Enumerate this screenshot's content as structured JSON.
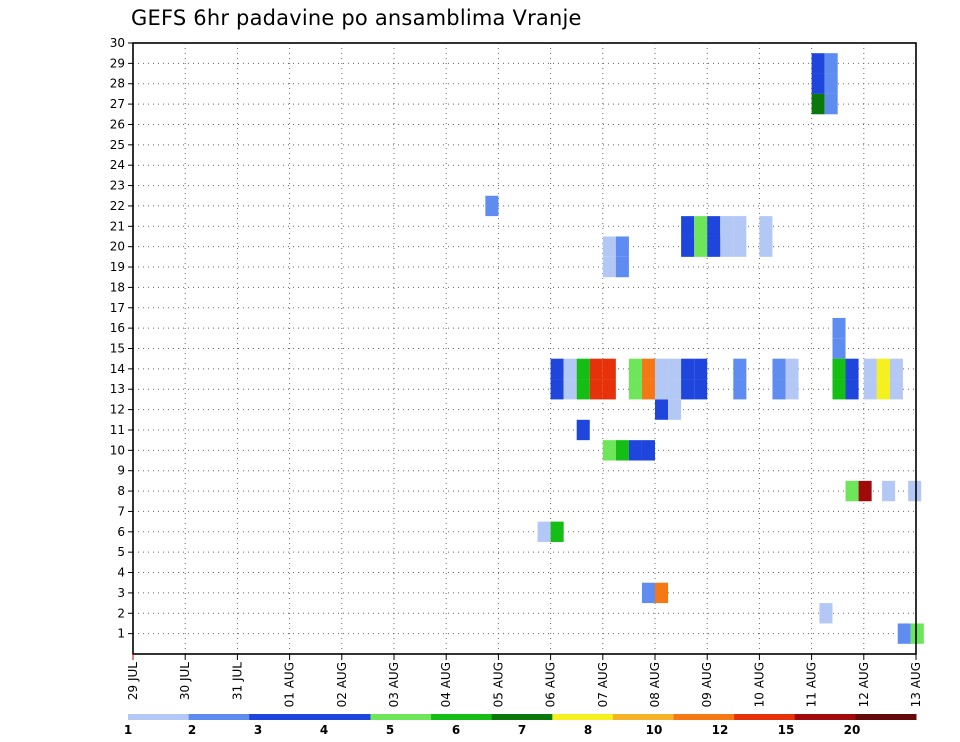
{
  "chart_data": {
    "type": "heatmap",
    "title": "GEFS 6hr padavine po ansamblima Vranje",
    "ylim": [
      0,
      30
    ],
    "x_tick_labels": [
      "29 JUL",
      "30 JUL",
      "31 JUL",
      "01 AUG",
      "02 AUG",
      "03 AUG",
      "04 AUG",
      "05 AUG",
      "06 AUG",
      "07 AUG",
      "08 AUG",
      "09 AUG",
      "10 AUG",
      "11 AUG",
      "12 AUG",
      "13 AUG"
    ],
    "y_ticks": [
      1,
      2,
      3,
      4,
      5,
      6,
      7,
      8,
      9,
      10,
      11,
      12,
      13,
      14,
      15,
      16,
      17,
      18,
      19,
      20,
      21,
      22,
      23,
      24,
      25,
      26,
      27,
      28,
      29,
      30
    ],
    "grid": true,
    "legend_position": "bottom",
    "legend": {
      "labels": [
        "1",
        "2",
        "3",
        "4",
        "5",
        "6",
        "7",
        "8",
        "10",
        "12",
        "15",
        "20"
      ],
      "colors": [
        "#b4c8f6",
        "#5f8cf0",
        "#1e46dc",
        "#1e46dc",
        "#6ee65a",
        "#14be14",
        "#0a780a",
        "#f5f01e",
        "#f5b428",
        "#f57814",
        "#e6320a",
        "#a00a0a",
        "#640a0a"
      ]
    },
    "points": [
      {
        "day": 13.0,
        "member": 29,
        "color": "#1e46dc"
      },
      {
        "day": 13.25,
        "member": 29,
        "color": "#5f8cf0"
      },
      {
        "day": 13.0,
        "member": 28,
        "color": "#1e46dc"
      },
      {
        "day": 13.25,
        "member": 28,
        "color": "#5f8cf0"
      },
      {
        "day": 13.0,
        "member": 27,
        "color": "#0a780a"
      },
      {
        "day": 13.25,
        "member": 27,
        "color": "#5f8cf0"
      },
      {
        "day": 6.75,
        "member": 22,
        "color": "#5f8cf0"
      },
      {
        "day": 10.5,
        "member": 21,
        "color": "#1e46dc"
      },
      {
        "day": 10.75,
        "member": 21,
        "color": "#6ee65a"
      },
      {
        "day": 11.0,
        "member": 21,
        "color": "#1e46dc"
      },
      {
        "day": 11.25,
        "member": 21,
        "color": "#b4c8f6"
      },
      {
        "day": 11.5,
        "member": 21,
        "color": "#b4c8f6"
      },
      {
        "day": 12.0,
        "member": 21,
        "color": "#b4c8f6"
      },
      {
        "day": 12.0,
        "member": 20,
        "color": "#b4c8f6"
      },
      {
        "day": 11.25,
        "member": 20,
        "color": "#b4c8f6"
      },
      {
        "day": 11.5,
        "member": 20,
        "color": "#b4c8f6"
      },
      {
        "day": 10.75,
        "member": 20,
        "color": "#6ee65a"
      },
      {
        "day": 10.5,
        "member": 20,
        "color": "#1e46dc"
      },
      {
        "day": 11.0,
        "member": 20,
        "color": "#1e46dc"
      },
      {
        "day": 9.0,
        "member": 20,
        "color": "#b4c8f6"
      },
      {
        "day": 9.25,
        "member": 20,
        "color": "#5f8cf0"
      },
      {
        "day": 9.0,
        "member": 19,
        "color": "#b4c8f6"
      },
      {
        "day": 9.25,
        "member": 19,
        "color": "#5f8cf0"
      },
      {
        "day": 13.4,
        "member": 16,
        "color": "#5f8cf0"
      },
      {
        "day": 13.4,
        "member": 15,
        "color": "#5f8cf0"
      },
      {
        "day": 8.0,
        "member": 14,
        "color": "#1e46dc"
      },
      {
        "day": 8.25,
        "member": 14,
        "color": "#b4c8f6"
      },
      {
        "day": 8.5,
        "member": 14,
        "color": "#14be14"
      },
      {
        "day": 8.75,
        "member": 14,
        "color": "#e6320a"
      },
      {
        "day": 9.0,
        "member": 14,
        "color": "#e6320a"
      },
      {
        "day": 9.5,
        "member": 14,
        "color": "#6ee65a"
      },
      {
        "day": 9.75,
        "member": 14,
        "color": "#f57814"
      },
      {
        "day": 10.0,
        "member": 14,
        "color": "#b4c8f6"
      },
      {
        "day": 10.25,
        "member": 14,
        "color": "#b4c8f6"
      },
      {
        "day": 10.5,
        "member": 14,
        "color": "#1e46dc"
      },
      {
        "day": 10.75,
        "member": 14,
        "color": "#1e46dc"
      },
      {
        "day": 11.5,
        "member": 14,
        "color": "#5f8cf0"
      },
      {
        "day": 12.25,
        "member": 14,
        "color": "#5f8cf0"
      },
      {
        "day": 12.5,
        "member": 14,
        "color": "#b4c8f6"
      },
      {
        "day": 13.4,
        "member": 14,
        "color": "#14be14"
      },
      {
        "day": 13.65,
        "member": 14,
        "color": "#1e46dc"
      },
      {
        "day": 14.0,
        "member": 14,
        "color": "#b4c8f6"
      },
      {
        "day": 14.25,
        "member": 14,
        "color": "#f5f01e"
      },
      {
        "day": 14.5,
        "member": 14,
        "color": "#b4c8f6"
      },
      {
        "day": 8.0,
        "member": 13,
        "color": "#1e46dc"
      },
      {
        "day": 8.25,
        "member": 13,
        "color": "#b4c8f6"
      },
      {
        "day": 8.5,
        "member": 13,
        "color": "#14be14"
      },
      {
        "day": 8.75,
        "member": 13,
        "color": "#e6320a"
      },
      {
        "day": 9.0,
        "member": 13,
        "color": "#e6320a"
      },
      {
        "day": 9.5,
        "member": 13,
        "color": "#6ee65a"
      },
      {
        "day": 9.75,
        "member": 13,
        "color": "#f57814"
      },
      {
        "day": 10.0,
        "member": 13,
        "color": "#b4c8f6"
      },
      {
        "day": 10.25,
        "member": 13,
        "color": "#b4c8f6"
      },
      {
        "day": 10.5,
        "member": 13,
        "color": "#1e46dc"
      },
      {
        "day": 10.75,
        "member": 13,
        "color": "#1e46dc"
      },
      {
        "day": 11.5,
        "member": 13,
        "color": "#5f8cf0"
      },
      {
        "day": 12.25,
        "member": 13,
        "color": "#5f8cf0"
      },
      {
        "day": 12.5,
        "member": 13,
        "color": "#b4c8f6"
      },
      {
        "day": 13.4,
        "member": 13,
        "color": "#14be14"
      },
      {
        "day": 13.65,
        "member": 13,
        "color": "#1e46dc"
      },
      {
        "day": 14.0,
        "member": 13,
        "color": "#b4c8f6"
      },
      {
        "day": 14.25,
        "member": 13,
        "color": "#f5f01e"
      },
      {
        "day": 14.5,
        "member": 13,
        "color": "#b4c8f6"
      },
      {
        "day": 10.0,
        "member": 12,
        "color": "#1e46dc"
      },
      {
        "day": 10.25,
        "member": 12,
        "color": "#b4c8f6"
      },
      {
        "day": 10.0,
        "member": 13,
        "color": "#b4c8f6"
      },
      {
        "day": 8.5,
        "member": 11,
        "color": "#1e46dc"
      },
      {
        "day": 9.0,
        "member": 10,
        "color": "#6ee65a"
      },
      {
        "day": 9.25,
        "member": 10,
        "color": "#14be14"
      },
      {
        "day": 9.5,
        "member": 10,
        "color": "#1e46dc"
      },
      {
        "day": 9.75,
        "member": 10,
        "color": "#1e46dc"
      },
      {
        "day": 13.65,
        "member": 8,
        "color": "#6ee65a"
      },
      {
        "day": 13.9,
        "member": 8,
        "color": "#a00a0a"
      },
      {
        "day": 14.35,
        "member": 8,
        "color": "#b4c8f6"
      },
      {
        "day": 14.85,
        "member": 8,
        "color": "#b4c8f6"
      },
      {
        "day": 7.75,
        "member": 6,
        "color": "#b4c8f6"
      },
      {
        "day": 8.0,
        "member": 6,
        "color": "#14be14"
      },
      {
        "day": 9.75,
        "member": 3,
        "color": "#5f8cf0"
      },
      {
        "day": 10.0,
        "member": 3,
        "color": "#f57814"
      },
      {
        "day": 13.15,
        "member": 2,
        "color": "#b4c8f6"
      },
      {
        "day": 14.65,
        "member": 1,
        "color": "#5f8cf0"
      },
      {
        "day": 14.9,
        "member": 1,
        "color": "#6ee65a"
      }
    ]
  }
}
